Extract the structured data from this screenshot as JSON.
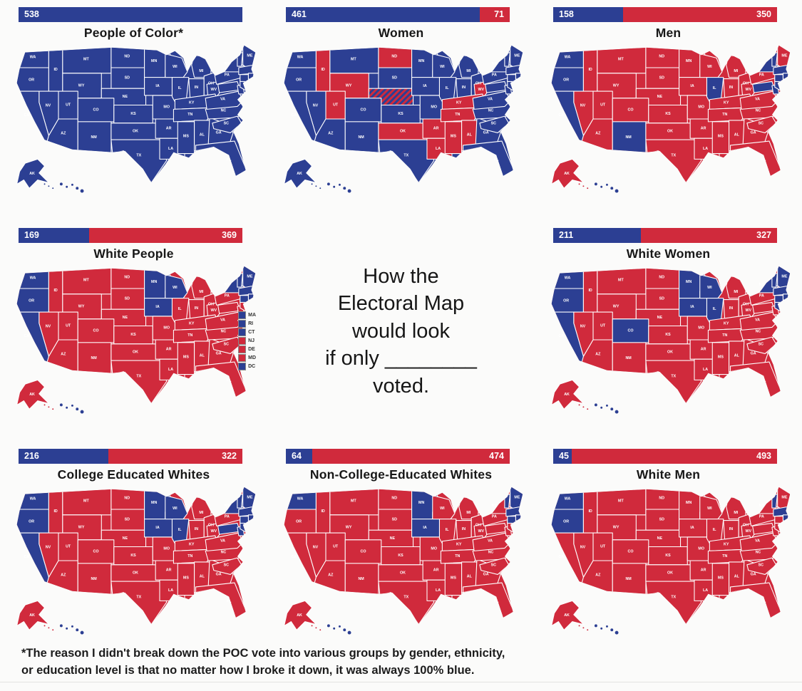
{
  "colors": {
    "blue": "#2c3f93",
    "red": "#d02a3c"
  },
  "center": {
    "lines": [
      "How the",
      "Electoral Map",
      "would look",
      "if only ________",
      "voted."
    ]
  },
  "footnote": {
    "line1": "*The reason I didn't break down the POC vote into various groups by gender, ethnicity,",
    "line2": "or education level is that no matter how I broke it down, it was always 100% blue."
  },
  "maps": [
    {
      "key": "people-of-color",
      "title": "People of Color*",
      "blue_ev": 538,
      "red_ev": null,
      "base": "blue",
      "red_states": [],
      "striped_states": []
    },
    {
      "key": "women",
      "title": "Women",
      "blue_ev": 461,
      "red_ev": 71,
      "base": "blue",
      "red_states": [
        "ID",
        "WY",
        "UT",
        "ND",
        "OK",
        "AR",
        "LA",
        "MS",
        "AL",
        "TN",
        "KY",
        "WV"
      ],
      "striped_states": [
        "NE"
      ]
    },
    {
      "key": "men",
      "title": "Men",
      "blue_ev": 158,
      "red_ev": 350,
      "base": "red",
      "blue_states": [
        "WA",
        "OR",
        "CA",
        "NM",
        "IL",
        "NY",
        "VT",
        "MA",
        "RI",
        "CT",
        "NJ",
        "MD",
        "DE",
        "DC",
        "HI"
      ]
    },
    {
      "key": "white-people",
      "title": "White People",
      "blue_ev": 169,
      "red_ev": 369,
      "base": "red",
      "blue_states": [
        "WA",
        "OR",
        "CA",
        "MN",
        "IA",
        "WI",
        "NY",
        "VT",
        "NH",
        "ME",
        "MA",
        "RI",
        "CT",
        "DC",
        "HI"
      ],
      "callouts": [
        {
          "label": "MA",
          "color": "blue"
        },
        {
          "label": "RI",
          "color": "blue"
        },
        {
          "label": "CT",
          "color": "blue"
        },
        {
          "label": "NJ",
          "color": "red"
        },
        {
          "label": "DE",
          "color": "red"
        },
        {
          "label": "MD",
          "color": "red"
        },
        {
          "label": "DC",
          "color": "blue"
        }
      ]
    },
    {
      "key": "white-women",
      "title": "White Women",
      "blue_ev": 211,
      "red_ev": 327,
      "base": "red",
      "blue_states": [
        "WA",
        "OR",
        "CA",
        "CO",
        "MN",
        "IA",
        "WI",
        "IL",
        "NY",
        "VT",
        "NH",
        "ME",
        "MA",
        "RI",
        "CT",
        "NJ",
        "DC",
        "HI"
      ]
    },
    {
      "key": "college-educated-whites",
      "title": "College Educated Whites",
      "blue_ev": 216,
      "red_ev": 322,
      "base": "red",
      "blue_states": [
        "WA",
        "OR",
        "CA",
        "MN",
        "WI",
        "IA",
        "IL",
        "NY",
        "VT",
        "NH",
        "ME",
        "MA",
        "RI",
        "CT",
        "NJ",
        "MD",
        "DE",
        "DC",
        "HI"
      ]
    },
    {
      "key": "non-college-educated-whites",
      "title": "Non-College-Educated Whites",
      "blue_ev": 64,
      "red_ev": 474,
      "base": "red",
      "blue_states": [
        "WA",
        "MN",
        "IA",
        "ME",
        "VT",
        "MA",
        "RI",
        "CT",
        "DC",
        "HI"
      ]
    },
    {
      "key": "white-men",
      "title": "White Men",
      "blue_ev": 45,
      "red_ev": 493,
      "base": "red",
      "blue_states": [
        "WA",
        "OR",
        "VT",
        "MA",
        "RI",
        "DC",
        "HI"
      ]
    }
  ]
}
